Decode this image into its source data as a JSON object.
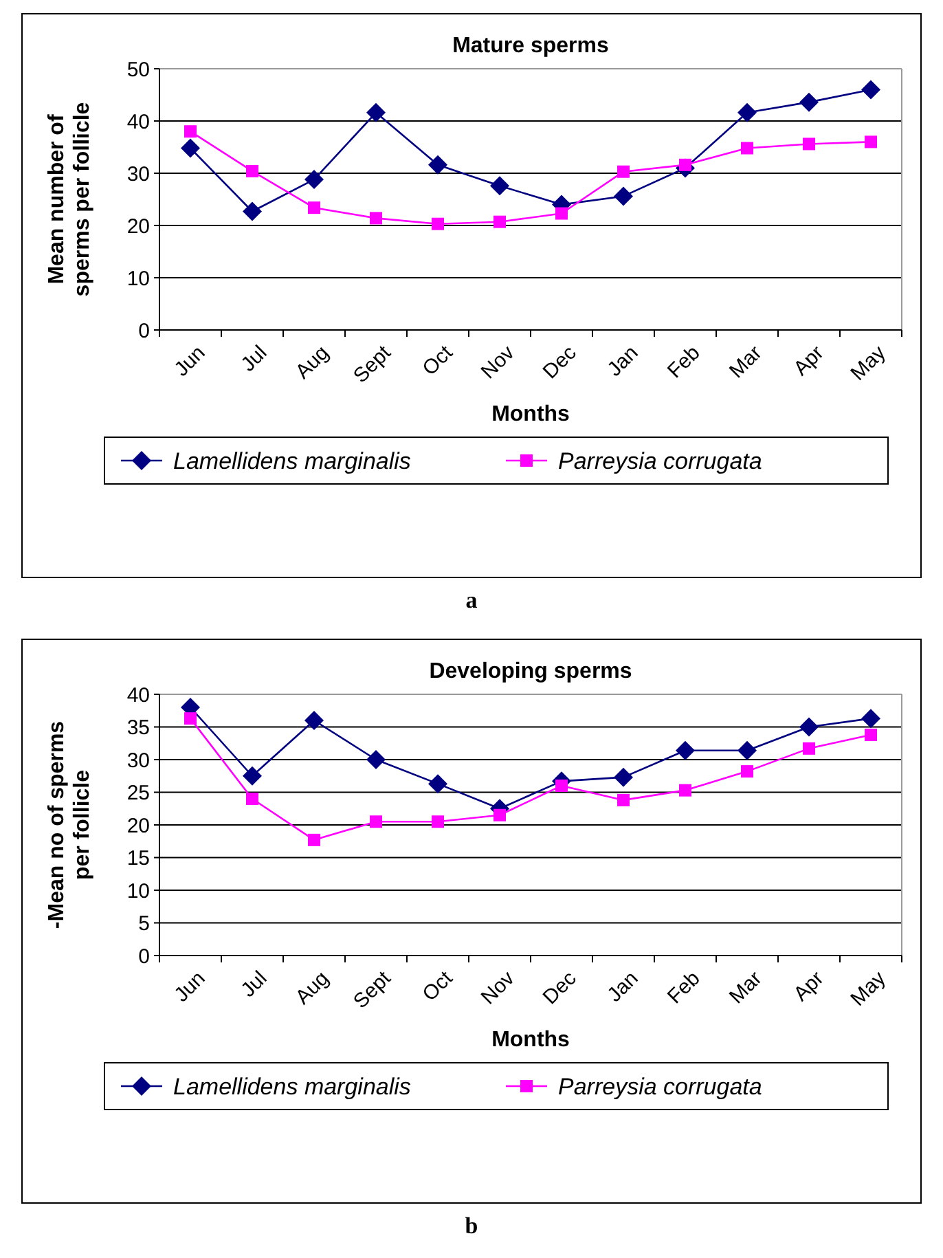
{
  "chart_data": [
    {
      "type": "line",
      "title": "Mature sperms",
      "xlabel": "Months",
      "ylabel": "Mean number of sperms per follicle",
      "categories": [
        "Jun",
        "Jul",
        "Aug",
        "Sept",
        "Oct",
        "Nov",
        "Dec",
        "Jan",
        "Feb",
        "Mar",
        "Apr",
        "May"
      ],
      "series": [
        {
          "name": "Lamellidens marginalis",
          "color": "#000080",
          "marker": "diamond",
          "values": [
            34.8,
            22.7,
            28.8,
            41.6,
            31.6,
            27.6,
            24,
            25.6,
            31,
            41.6,
            43.6,
            46
          ]
        },
        {
          "name": "Parreysia corrugata",
          "color": "#ff00ff",
          "marker": "square",
          "values": [
            38,
            30.4,
            23.4,
            21.4,
            20.3,
            20.7,
            22.3,
            30.3,
            31.6,
            34.8,
            35.6,
            36
          ]
        }
      ],
      "ylim": [
        0,
        50
      ],
      "yticks": [
        0,
        10,
        20,
        30,
        40,
        50
      ],
      "grid": "y",
      "legend": "bottom",
      "annotations": [
        "a"
      ]
    },
    {
      "type": "line",
      "title": "Developing sperms",
      "xlabel": "Months",
      "ylabel": "-Mean no of sperms per follicle",
      "categories": [
        "Jun",
        "Jul",
        "Aug",
        "Sept",
        "Oct",
        "Nov",
        "Dec",
        "Jan",
        "Feb",
        "Mar",
        "Apr",
        "May"
      ],
      "series": [
        {
          "name": "Lamellidens marginalis",
          "color": "#000080",
          "marker": "diamond",
          "values": [
            38,
            27.5,
            36,
            30,
            26.3,
            22.5,
            26.7,
            27.3,
            31.4,
            31.4,
            35,
            36.3
          ]
        },
        {
          "name": "Parreysia corrugata",
          "color": "#ff00ff",
          "marker": "square",
          "values": [
            36.3,
            24,
            17.7,
            20.5,
            20.5,
            21.5,
            26,
            23.8,
            25.3,
            28.2,
            31.7,
            33.8
          ]
        }
      ],
      "ylim": [
        0,
        40
      ],
      "yticks": [
        0,
        5,
        10,
        15,
        20,
        25,
        30,
        35,
        40
      ],
      "grid": "y",
      "legend": "bottom",
      "annotations": [
        "b"
      ]
    }
  ]
}
